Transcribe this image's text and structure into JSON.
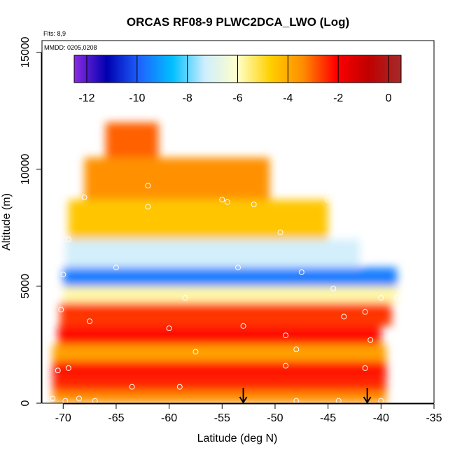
{
  "chart_data": {
    "type": "heatmap",
    "title": "ORCAS RF08-9 PLWC2DCA_LWO (Log)",
    "xlabel": "Latitude (deg N)",
    "ylabel": "Altitude (m)",
    "xlim": [
      -72,
      -35
    ],
    "ylim": [
      0,
      15500
    ],
    "x_ticks": [
      -70,
      -65,
      -60,
      -55,
      -50,
      -45,
      -40,
      -35
    ],
    "y_ticks": [
      0,
      5000,
      10000,
      15000
    ],
    "x_tick_labels": [
      "-70",
      "-65",
      "-60",
      "-55",
      "-50",
      "-45",
      "-40",
      "-35"
    ],
    "y_tick_labels": [
      "0",
      "5000",
      "10000",
      "15000"
    ],
    "annotations": {
      "flights": "Flts: 8,9",
      "dates": "MMDD: 0205,0208"
    },
    "colorbar": {
      "range": [
        -12.5,
        0.5
      ],
      "ticks": [
        -12,
        -10,
        -8,
        -6,
        -4,
        -2,
        0
      ],
      "tick_labels": [
        "-12",
        "-10",
        "-8",
        "-6",
        "-4",
        "-2",
        "0"
      ],
      "colors": [
        "#8a2be2",
        "#0000b0",
        "#1e63ff",
        "#00bfff",
        "#cfeeff",
        "#ffffc8",
        "#ffd000",
        "#ff8c00",
        "#ff0000",
        "#c00000",
        "#a52a2a"
      ]
    },
    "field_bands": [
      {
        "alt": [
          0,
          500
        ],
        "lat": [
          -71,
          -39.5
        ],
        "value": -3.5
      },
      {
        "alt": [
          500,
          1000
        ],
        "lat": [
          -71,
          -39.5
        ],
        "value": -2.5
      },
      {
        "alt": [
          1000,
          1800
        ],
        "lat": [
          -71,
          -39.5
        ],
        "value": -2.3
      },
      {
        "alt": [
          1800,
          2500
        ],
        "lat": [
          -71,
          -39.5
        ],
        "value": -3.8
      },
      {
        "alt": [
          2500,
          3300
        ],
        "lat": [
          -70.5,
          -40
        ],
        "value": -2.2
      },
      {
        "alt": [
          3300,
          4300
        ],
        "lat": [
          -70.3,
          -39
        ],
        "value": -2.6
      },
      {
        "alt": [
          4300,
          5000
        ],
        "lat": [
          -70,
          -38.5
        ],
        "value": -5.8
      },
      {
        "alt": [
          5000,
          5800
        ],
        "lat": [
          -70,
          -38.5
        ],
        "value": -9.5
      },
      {
        "alt": [
          5800,
          7000
        ],
        "lat": [
          -69.8,
          -42
        ],
        "value": -7.2
      },
      {
        "alt": [
          7000,
          8700
        ],
        "lat": [
          -69.5,
          -45
        ],
        "value": -4.5
      },
      {
        "alt": [
          8700,
          10500
        ],
        "lat": [
          -68,
          -50.5
        ],
        "value": -3.5
      },
      {
        "alt": [
          10500,
          12000
        ],
        "lat": [
          -66,
          -61
        ],
        "value": -3.0
      }
    ],
    "flight_points": [
      [
        -70,
        5500
      ],
      [
        -70.2,
        4000
      ],
      [
        -71,
        200
      ],
      [
        -69.8,
        100
      ],
      [
        -68.5,
        200
      ],
      [
        -67.5,
        3500
      ],
      [
        -69.5,
        7000
      ],
      [
        -68,
        8800
      ],
      [
        -65,
        5800
      ],
      [
        -62,
        9300
      ],
      [
        -62,
        8400
      ],
      [
        -58.5,
        4500
      ],
      [
        -60,
        3200
      ],
      [
        -57.5,
        2200
      ],
      [
        -59,
        700
      ],
      [
        -63.5,
        700
      ],
      [
        -55,
        8700
      ],
      [
        -54.5,
        8600
      ],
      [
        -52,
        8500
      ],
      [
        -53.5,
        5800
      ],
      [
        -53,
        3300
      ],
      [
        -49.5,
        7300
      ],
      [
        -49,
        2900
      ],
      [
        -48,
        2300
      ],
      [
        -49,
        1600
      ],
      [
        -47.5,
        5600
      ],
      [
        -45,
        8700
      ],
      [
        -44.5,
        4900
      ],
      [
        -43.5,
        3700
      ],
      [
        -41.5,
        3900
      ],
      [
        -41,
        2700
      ],
      [
        -41.5,
        1500
      ],
      [
        -40,
        4500
      ],
      [
        -38.5,
        4500
      ],
      [
        -48,
        100
      ],
      [
        -44,
        100
      ],
      [
        -40,
        100
      ],
      [
        -69.5,
        1500
      ],
      [
        -70.5,
        1400
      ],
      [
        -67,
        100
      ]
    ],
    "arrows": [
      -53,
      -41.3
    ]
  }
}
